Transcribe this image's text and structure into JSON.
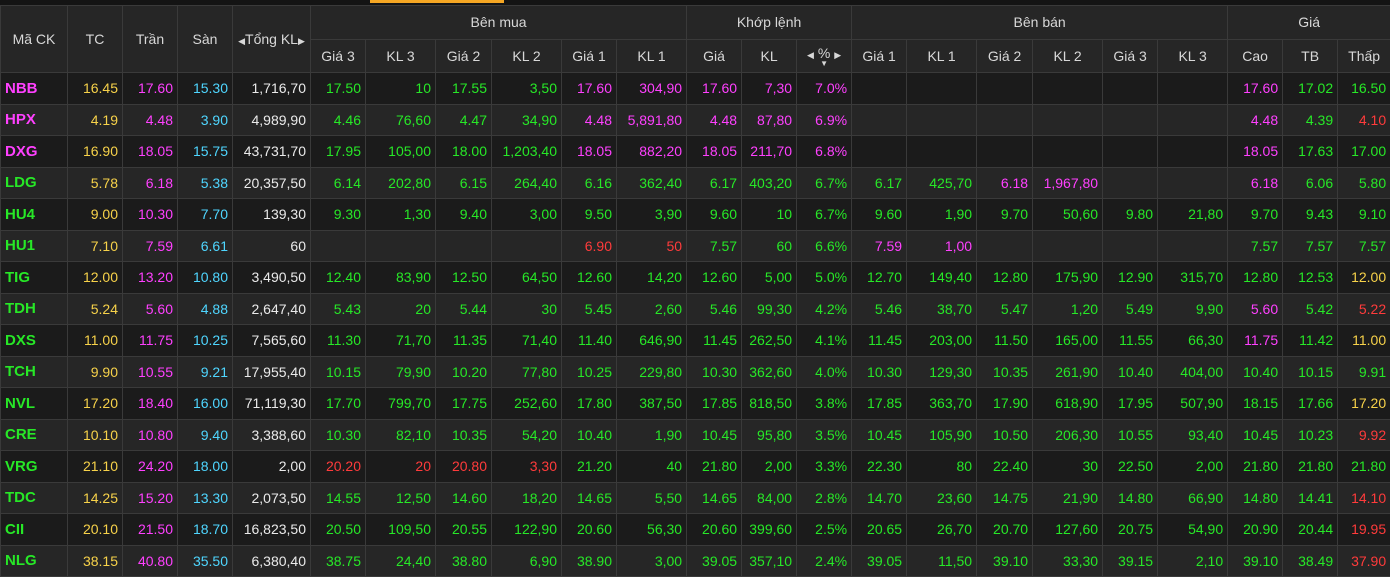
{
  "header": {
    "symbol": "Mã CK",
    "ref": "TC",
    "ceil": "Trần",
    "floor": "Sàn",
    "total_vol": "Tổng KL",
    "buy_group": "Bên mua",
    "match_group": "Khớp lệnh",
    "sell_group": "Bên bán",
    "price_group": "Giá",
    "buy_cols": [
      "Giá 3",
      "KL 3",
      "Giá 2",
      "KL 2",
      "Giá 1",
      "KL 1"
    ],
    "match_cols": [
      "Giá",
      "KL",
      "%"
    ],
    "sell_cols": [
      "Giá 1",
      "KL 1",
      "Giá 2",
      "KL 2",
      "Giá 3",
      "KL 3"
    ],
    "price_cols": [
      "Cao",
      "TB",
      "Thấp"
    ]
  },
  "colors": {
    "reference": "#f7d24a",
    "ceiling": "#ff40ff",
    "floor": "#4fd6ff",
    "up": "#27e827",
    "down": "#ff3b3b",
    "neutral": "#eaeaea",
    "accent_top": "#f5a623"
  },
  "rows": [
    {
      "sym": "NBB",
      "tc": "16.45",
      "ceil": "17.60",
      "floor": "15.30",
      "vol": "1,716,70",
      "b3p": "17.50",
      "b3v": "10",
      "b2p": "17.55",
      "b2v": "3,50",
      "b1p": "17.60",
      "b1v": "304,90",
      "mp": "17.60",
      "mv": "7,30",
      "pct": "7.0%",
      "s1p": "",
      "s1v": "",
      "s2p": "",
      "s2v": "",
      "s3p": "",
      "s3v": "",
      "hi": "17.60",
      "avg": "17.02",
      "lo": "16.50",
      "c": {
        "sym": "ce",
        "b3": "up",
        "b2": "up",
        "b1": "ce",
        "m": "ce",
        "s1": "up",
        "s2": "up",
        "s3": "up",
        "hi": "ce",
        "avg": "up",
        "lo": "up"
      }
    },
    {
      "sym": "HPX",
      "tc": "4.19",
      "ceil": "4.48",
      "floor": "3.90",
      "vol": "4,989,90",
      "b3p": "4.46",
      "b3v": "76,60",
      "b2p": "4.47",
      "b2v": "34,90",
      "b1p": "4.48",
      "b1v": "5,891,80",
      "mp": "4.48",
      "mv": "87,80",
      "pct": "6.9%",
      "s1p": "",
      "s1v": "",
      "s2p": "",
      "s2v": "",
      "s3p": "",
      "s3v": "",
      "hi": "4.48",
      "avg": "4.39",
      "lo": "4.10",
      "c": {
        "sym": "ce",
        "b3": "up",
        "b2": "up",
        "b1": "ce",
        "m": "ce",
        "s1": "up",
        "s2": "up",
        "s3": "up",
        "hi": "ce",
        "avg": "up",
        "lo": "dn"
      }
    },
    {
      "sym": "DXG",
      "tc": "16.90",
      "ceil": "18.05",
      "floor": "15.75",
      "vol": "43,731,70",
      "b3p": "17.95",
      "b3v": "105,00",
      "b2p": "18.00",
      "b2v": "1,203,40",
      "b1p": "18.05",
      "b1v": "882,20",
      "mp": "18.05",
      "mv": "211,70",
      "pct": "6.8%",
      "s1p": "",
      "s1v": "",
      "s2p": "",
      "s2v": "",
      "s3p": "",
      "s3v": "",
      "hi": "18.05",
      "avg": "17.63",
      "lo": "17.00",
      "c": {
        "sym": "ce",
        "b3": "up",
        "b2": "up",
        "b1": "ce",
        "m": "ce",
        "s1": "up",
        "s2": "up",
        "s3": "up",
        "hi": "ce",
        "avg": "up",
        "lo": "up"
      }
    },
    {
      "sym": "LDG",
      "tc": "5.78",
      "ceil": "6.18",
      "floor": "5.38",
      "vol": "20,357,50",
      "b3p": "6.14",
      "b3v": "202,80",
      "b2p": "6.15",
      "b2v": "264,40",
      "b1p": "6.16",
      "b1v": "362,40",
      "mp": "6.17",
      "mv": "403,20",
      "pct": "6.7%",
      "s1p": "6.17",
      "s1v": "425,70",
      "s2p": "6.18",
      "s2v": "1,967,80",
      "s3p": "",
      "s3v": "",
      "hi": "6.18",
      "avg": "6.06",
      "lo": "5.80",
      "c": {
        "sym": "up",
        "b3": "up",
        "b2": "up",
        "b1": "up",
        "m": "up",
        "s1": "up",
        "s2": "ce",
        "s3": "up",
        "hi": "ce",
        "avg": "up",
        "lo": "up"
      }
    },
    {
      "sym": "HU4",
      "tc": "9.00",
      "ceil": "10.30",
      "floor": "7.70",
      "vol": "139,30",
      "b3p": "9.30",
      "b3v": "1,30",
      "b2p": "9.40",
      "b2v": "3,00",
      "b1p": "9.50",
      "b1v": "3,90",
      "mp": "9.60",
      "mv": "10",
      "pct": "6.7%",
      "s1p": "9.60",
      "s1v": "1,90",
      "s2p": "9.70",
      "s2v": "50,60",
      "s3p": "9.80",
      "s3v": "21,80",
      "hi": "9.70",
      "avg": "9.43",
      "lo": "9.10",
      "c": {
        "sym": "up",
        "b3": "up",
        "b2": "up",
        "b1": "up",
        "m": "up",
        "s1": "up",
        "s2": "up",
        "s3": "up",
        "hi": "up",
        "avg": "up",
        "lo": "up"
      }
    },
    {
      "sym": "HU1",
      "tc": "7.10",
      "ceil": "7.59",
      "floor": "6.61",
      "vol": "60",
      "b3p": "",
      "b3v": "",
      "b2p": "",
      "b2v": "",
      "b1p": "6.90",
      "b1v": "50",
      "mp": "7.57",
      "mv": "60",
      "pct": "6.6%",
      "s1p": "7.59",
      "s1v": "1,00",
      "s2p": "",
      "s2v": "",
      "s3p": "",
      "s3v": "",
      "hi": "7.57",
      "avg": "7.57",
      "lo": "7.57",
      "c": {
        "sym": "up",
        "b3": "up",
        "b2": "up",
        "b1": "dn",
        "m": "up",
        "s1": "ce",
        "s2": "up",
        "s3": "up",
        "hi": "up",
        "avg": "up",
        "lo": "up"
      }
    },
    {
      "sym": "TIG",
      "tc": "12.00",
      "ceil": "13.20",
      "floor": "10.80",
      "vol": "3,490,50",
      "b3p": "12.40",
      "b3v": "83,90",
      "b2p": "12.50",
      "b2v": "64,50",
      "b1p": "12.60",
      "b1v": "14,20",
      "mp": "12.60",
      "mv": "5,00",
      "pct": "5.0%",
      "s1p": "12.70",
      "s1v": "149,40",
      "s2p": "12.80",
      "s2v": "175,90",
      "s3p": "12.90",
      "s3v": "315,70",
      "hi": "12.80",
      "avg": "12.53",
      "lo": "12.00",
      "c": {
        "sym": "up",
        "b3": "up",
        "b2": "up",
        "b1": "up",
        "m": "up",
        "s1": "up",
        "s2": "up",
        "s3": "up",
        "hi": "up",
        "avg": "up",
        "lo": "tc"
      }
    },
    {
      "sym": "TDH",
      "tc": "5.24",
      "ceil": "5.60",
      "floor": "4.88",
      "vol": "2,647,40",
      "b3p": "5.43",
      "b3v": "20",
      "b2p": "5.44",
      "b2v": "30",
      "b1p": "5.45",
      "b1v": "2,60",
      "mp": "5.46",
      "mv": "99,30",
      "pct": "4.2%",
      "s1p": "5.46",
      "s1v": "38,70",
      "s2p": "5.47",
      "s2v": "1,20",
      "s3p": "5.49",
      "s3v": "9,90",
      "hi": "5.60",
      "avg": "5.42",
      "lo": "5.22",
      "c": {
        "sym": "up",
        "b3": "up",
        "b2": "up",
        "b1": "up",
        "m": "up",
        "s1": "up",
        "s2": "up",
        "s3": "up",
        "hi": "ce",
        "avg": "up",
        "lo": "dn"
      }
    },
    {
      "sym": "DXS",
      "tc": "11.00",
      "ceil": "11.75",
      "floor": "10.25",
      "vol": "7,565,60",
      "b3p": "11.30",
      "b3v": "71,70",
      "b2p": "11.35",
      "b2v": "71,40",
      "b1p": "11.40",
      "b1v": "646,90",
      "mp": "11.45",
      "mv": "262,50",
      "pct": "4.1%",
      "s1p": "11.45",
      "s1v": "203,00",
      "s2p": "11.50",
      "s2v": "165,00",
      "s3p": "11.55",
      "s3v": "66,30",
      "hi": "11.75",
      "avg": "11.42",
      "lo": "11.00",
      "c": {
        "sym": "up",
        "b3": "up",
        "b2": "up",
        "b1": "up",
        "m": "up",
        "s1": "up",
        "s2": "up",
        "s3": "up",
        "hi": "ce",
        "avg": "up",
        "lo": "tc"
      }
    },
    {
      "sym": "TCH",
      "tc": "9.90",
      "ceil": "10.55",
      "floor": "9.21",
      "vol": "17,955,40",
      "b3p": "10.15",
      "b3v": "79,90",
      "b2p": "10.20",
      "b2v": "77,80",
      "b1p": "10.25",
      "b1v": "229,80",
      "mp": "10.30",
      "mv": "362,60",
      "pct": "4.0%",
      "s1p": "10.30",
      "s1v": "129,30",
      "s2p": "10.35",
      "s2v": "261,90",
      "s3p": "10.40",
      "s3v": "404,00",
      "hi": "10.40",
      "avg": "10.15",
      "lo": "9.91",
      "c": {
        "sym": "up",
        "b3": "up",
        "b2": "up",
        "b1": "up",
        "m": "up",
        "s1": "up",
        "s2": "up",
        "s3": "up",
        "hi": "up",
        "avg": "up",
        "lo": "up"
      }
    },
    {
      "sym": "NVL",
      "tc": "17.20",
      "ceil": "18.40",
      "floor": "16.00",
      "vol": "71,119,30",
      "b3p": "17.70",
      "b3v": "799,70",
      "b2p": "17.75",
      "b2v": "252,60",
      "b1p": "17.80",
      "b1v": "387,50",
      "mp": "17.85",
      "mv": "818,50",
      "pct": "3.8%",
      "s1p": "17.85",
      "s1v": "363,70",
      "s2p": "17.90",
      "s2v": "618,90",
      "s3p": "17.95",
      "s3v": "507,90",
      "hi": "18.15",
      "avg": "17.66",
      "lo": "17.20",
      "c": {
        "sym": "up",
        "b3": "up",
        "b2": "up",
        "b1": "up",
        "m": "up",
        "s1": "up",
        "s2": "up",
        "s3": "up",
        "hi": "up",
        "avg": "up",
        "lo": "tc"
      }
    },
    {
      "sym": "CRE",
      "tc": "10.10",
      "ceil": "10.80",
      "floor": "9.40",
      "vol": "3,388,60",
      "b3p": "10.30",
      "b3v": "82,10",
      "b2p": "10.35",
      "b2v": "54,20",
      "b1p": "10.40",
      "b1v": "1,90",
      "mp": "10.45",
      "mv": "95,80",
      "pct": "3.5%",
      "s1p": "10.45",
      "s1v": "105,90",
      "s2p": "10.50",
      "s2v": "206,30",
      "s3p": "10.55",
      "s3v": "93,40",
      "hi": "10.45",
      "avg": "10.23",
      "lo": "9.92",
      "c": {
        "sym": "up",
        "b3": "up",
        "b2": "up",
        "b1": "up",
        "m": "up",
        "s1": "up",
        "s2": "up",
        "s3": "up",
        "hi": "up",
        "avg": "up",
        "lo": "dn"
      }
    },
    {
      "sym": "VRG",
      "tc": "21.10",
      "ceil": "24.20",
      "floor": "18.00",
      "vol": "2,00",
      "b3p": "20.20",
      "b3v": "20",
      "b2p": "20.80",
      "b2v": "3,30",
      "b1p": "21.20",
      "b1v": "40",
      "mp": "21.80",
      "mv": "2,00",
      "pct": "3.3%",
      "s1p": "22.30",
      "s1v": "80",
      "s2p": "22.40",
      "s2v": "30",
      "s3p": "22.50",
      "s3v": "2,00",
      "hi": "21.80",
      "avg": "21.80",
      "lo": "21.80",
      "c": {
        "sym": "up",
        "b3": "dn",
        "b2": "dn",
        "b1": "up",
        "m": "up",
        "s1": "up",
        "s2": "up",
        "s3": "up",
        "hi": "up",
        "avg": "up",
        "lo": "up"
      }
    },
    {
      "sym": "TDC",
      "tc": "14.25",
      "ceil": "15.20",
      "floor": "13.30",
      "vol": "2,073,50",
      "b3p": "14.55",
      "b3v": "12,50",
      "b2p": "14.60",
      "b2v": "18,20",
      "b1p": "14.65",
      "b1v": "5,50",
      "mp": "14.65",
      "mv": "84,00",
      "pct": "2.8%",
      "s1p": "14.70",
      "s1v": "23,60",
      "s2p": "14.75",
      "s2v": "21,90",
      "s3p": "14.80",
      "s3v": "66,90",
      "hi": "14.80",
      "avg": "14.41",
      "lo": "14.10",
      "c": {
        "sym": "up",
        "b3": "up",
        "b2": "up",
        "b1": "up",
        "m": "up",
        "s1": "up",
        "s2": "up",
        "s3": "up",
        "hi": "up",
        "avg": "up",
        "lo": "dn"
      }
    },
    {
      "sym": "CII",
      "tc": "20.10",
      "ceil": "21.50",
      "floor": "18.70",
      "vol": "16,823,50",
      "b3p": "20.50",
      "b3v": "109,50",
      "b2p": "20.55",
      "b2v": "122,90",
      "b1p": "20.60",
      "b1v": "56,30",
      "mp": "20.60",
      "mv": "399,60",
      "pct": "2.5%",
      "s1p": "20.65",
      "s1v": "26,70",
      "s2p": "20.70",
      "s2v": "127,60",
      "s3p": "20.75",
      "s3v": "54,90",
      "hi": "20.90",
      "avg": "20.44",
      "lo": "19.95",
      "c": {
        "sym": "up",
        "b3": "up",
        "b2": "up",
        "b1": "up",
        "m": "up",
        "s1": "up",
        "s2": "up",
        "s3": "up",
        "hi": "up",
        "avg": "up",
        "lo": "dn"
      }
    },
    {
      "sym": "NLG",
      "tc": "38.15",
      "ceil": "40.80",
      "floor": "35.50",
      "vol": "6,380,40",
      "b3p": "38.75",
      "b3v": "24,40",
      "b2p": "38.80",
      "b2v": "6,90",
      "b1p": "38.90",
      "b1v": "3,00",
      "mp": "39.05",
      "mv": "357,10",
      "pct": "2.4%",
      "s1p": "39.05",
      "s1v": "11,50",
      "s2p": "39.10",
      "s2v": "33,30",
      "s3p": "39.15",
      "s3v": "2,10",
      "hi": "39.10",
      "avg": "38.49",
      "lo": "37.90",
      "c": {
        "sym": "up",
        "b3": "up",
        "b2": "up",
        "b1": "up",
        "m": "up",
        "s1": "up",
        "s2": "up",
        "s3": "up",
        "hi": "up",
        "avg": "up",
        "lo": "dn"
      }
    }
  ]
}
